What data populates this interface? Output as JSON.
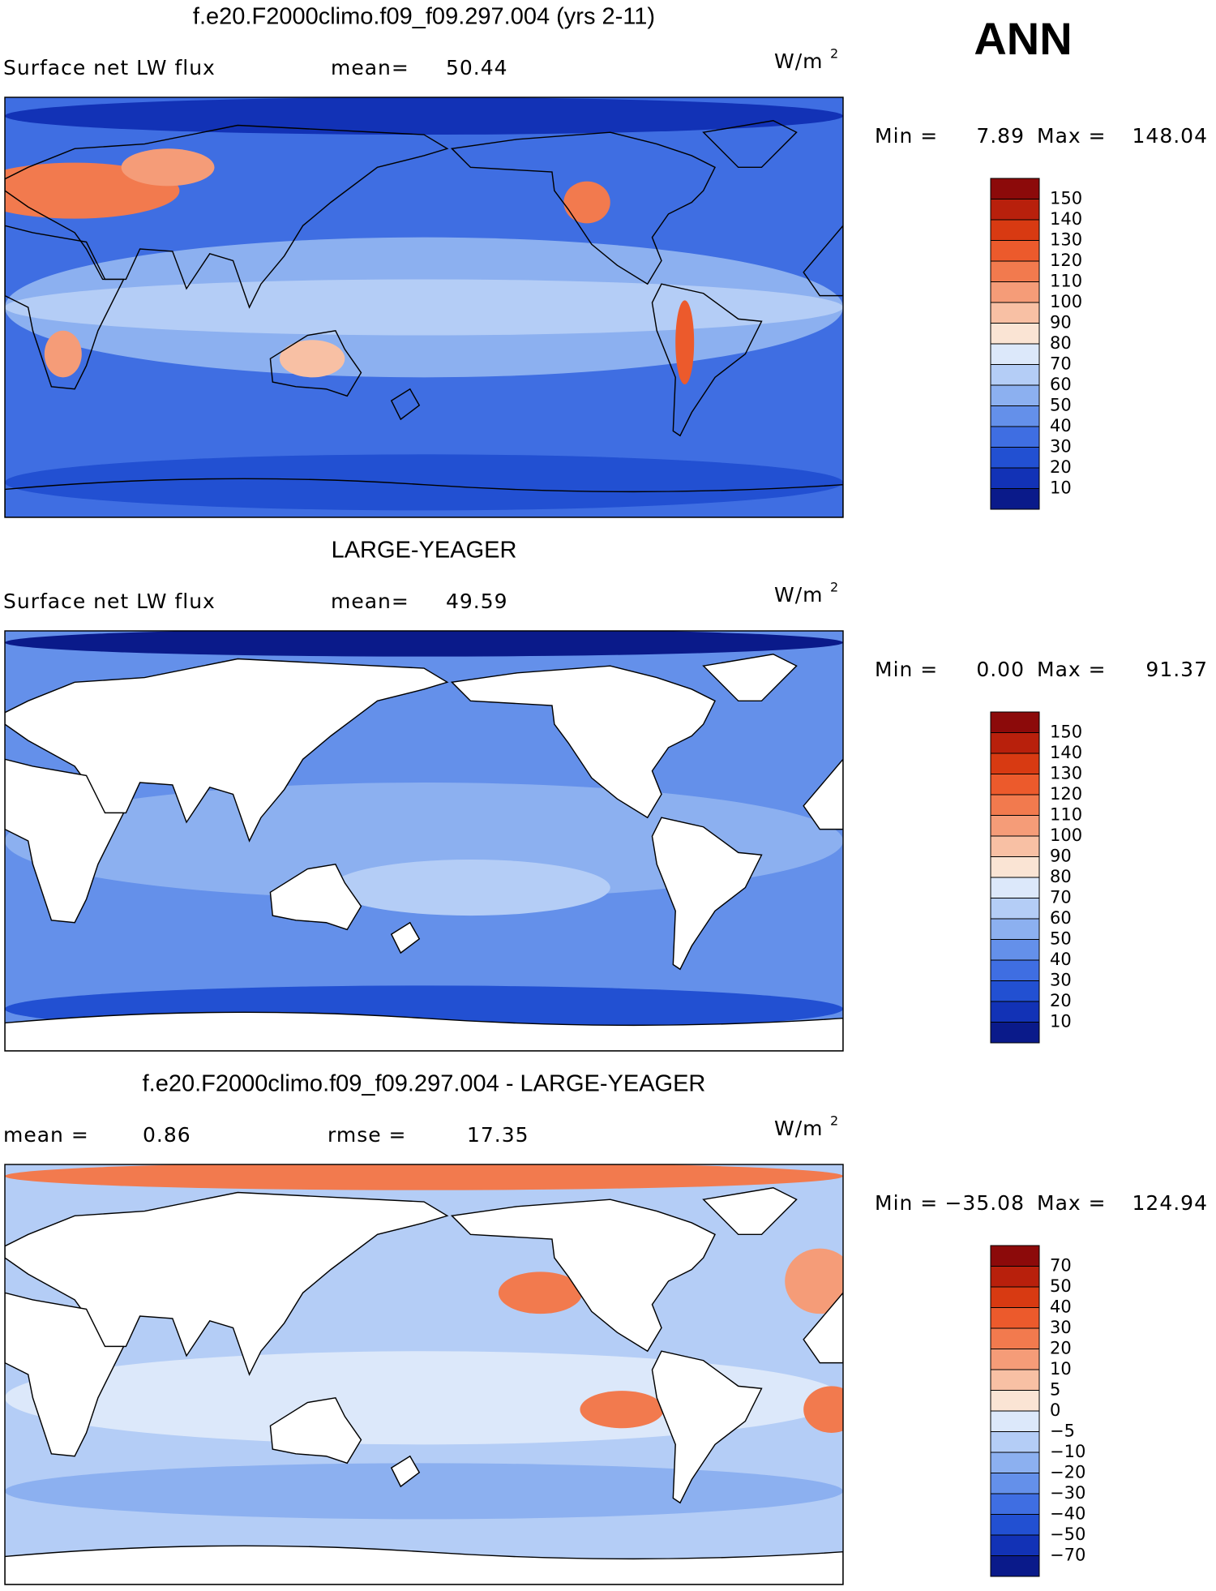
{
  "season": "ANN",
  "panels": [
    {
      "title": "f.e20.F2000climo.f09_f09.297.004 (yrs 2-11)",
      "left_label": "Surface net LW flux",
      "stats": [
        {
          "label": "mean=",
          "value": "50.44"
        }
      ],
      "units": "W/m",
      "units_sup": "2",
      "min_label": "Min =",
      "min_value": "7.89",
      "max_label": "Max =",
      "max_value": "148.04",
      "colorbar": {
        "labels": [
          "150",
          "140",
          "130",
          "120",
          "110",
          "100",
          "90",
          "80",
          "70",
          "60",
          "50",
          "40",
          "30",
          "20",
          "10"
        ],
        "colors": [
          "#8c0a0a",
          "#b8200c",
          "#d83a12",
          "#ec5a2c",
          "#f27a4e",
          "#f59c78",
          "#f8c0a4",
          "#fae4d4",
          "#dce8fa",
          "#b4cdf6",
          "#8cb0f0",
          "#6490ea",
          "#3f6ee2",
          "#2250d2",
          "#1232b6",
          "#0a1a8a"
        ]
      }
    },
    {
      "title": "LARGE-YEAGER",
      "left_label": "Surface net LW flux",
      "stats": [
        {
          "label": "mean=",
          "value": "49.59"
        }
      ],
      "units": "W/m",
      "units_sup": "2",
      "min_label": "Min =",
      "min_value": "0.00",
      "max_label": "Max =",
      "max_value": "91.37",
      "colorbar": {
        "labels": [
          "150",
          "140",
          "130",
          "120",
          "110",
          "100",
          "90",
          "80",
          "70",
          "60",
          "50",
          "40",
          "30",
          "20",
          "10"
        ],
        "colors": [
          "#8c0a0a",
          "#b8200c",
          "#d83a12",
          "#ec5a2c",
          "#f27a4e",
          "#f59c78",
          "#f8c0a4",
          "#fae4d4",
          "#dce8fa",
          "#b4cdf6",
          "#8cb0f0",
          "#6490ea",
          "#3f6ee2",
          "#2250d2",
          "#1232b6",
          "#0a1a8a"
        ]
      }
    },
    {
      "title": "f.e20.F2000climo.f09_f09.297.004 - LARGE-YEAGER",
      "stats": [
        {
          "label": "mean =",
          "value": "0.86"
        },
        {
          "label": "rmse =",
          "value": "17.35"
        }
      ],
      "units": "W/m",
      "units_sup": "2",
      "min_label": "Min =",
      "min_value": "−35.08",
      "max_label": "Max =",
      "max_value": "124.94",
      "colorbar": {
        "labels": [
          "70",
          "50",
          "40",
          "30",
          "20",
          "10",
          "5",
          "0",
          "−5",
          "−10",
          "−20",
          "−30",
          "−40",
          "−50",
          "−70"
        ],
        "colors": [
          "#8c0a0a",
          "#b8200c",
          "#d83a12",
          "#ec5a2c",
          "#f27a4e",
          "#f59c78",
          "#f8c0a4",
          "#fae4d4",
          "#dce8fa",
          "#b4cdf6",
          "#8cb0f0",
          "#6490ea",
          "#3f6ee2",
          "#2250d2",
          "#1232b6",
          "#0a1a8a"
        ]
      }
    }
  ]
}
